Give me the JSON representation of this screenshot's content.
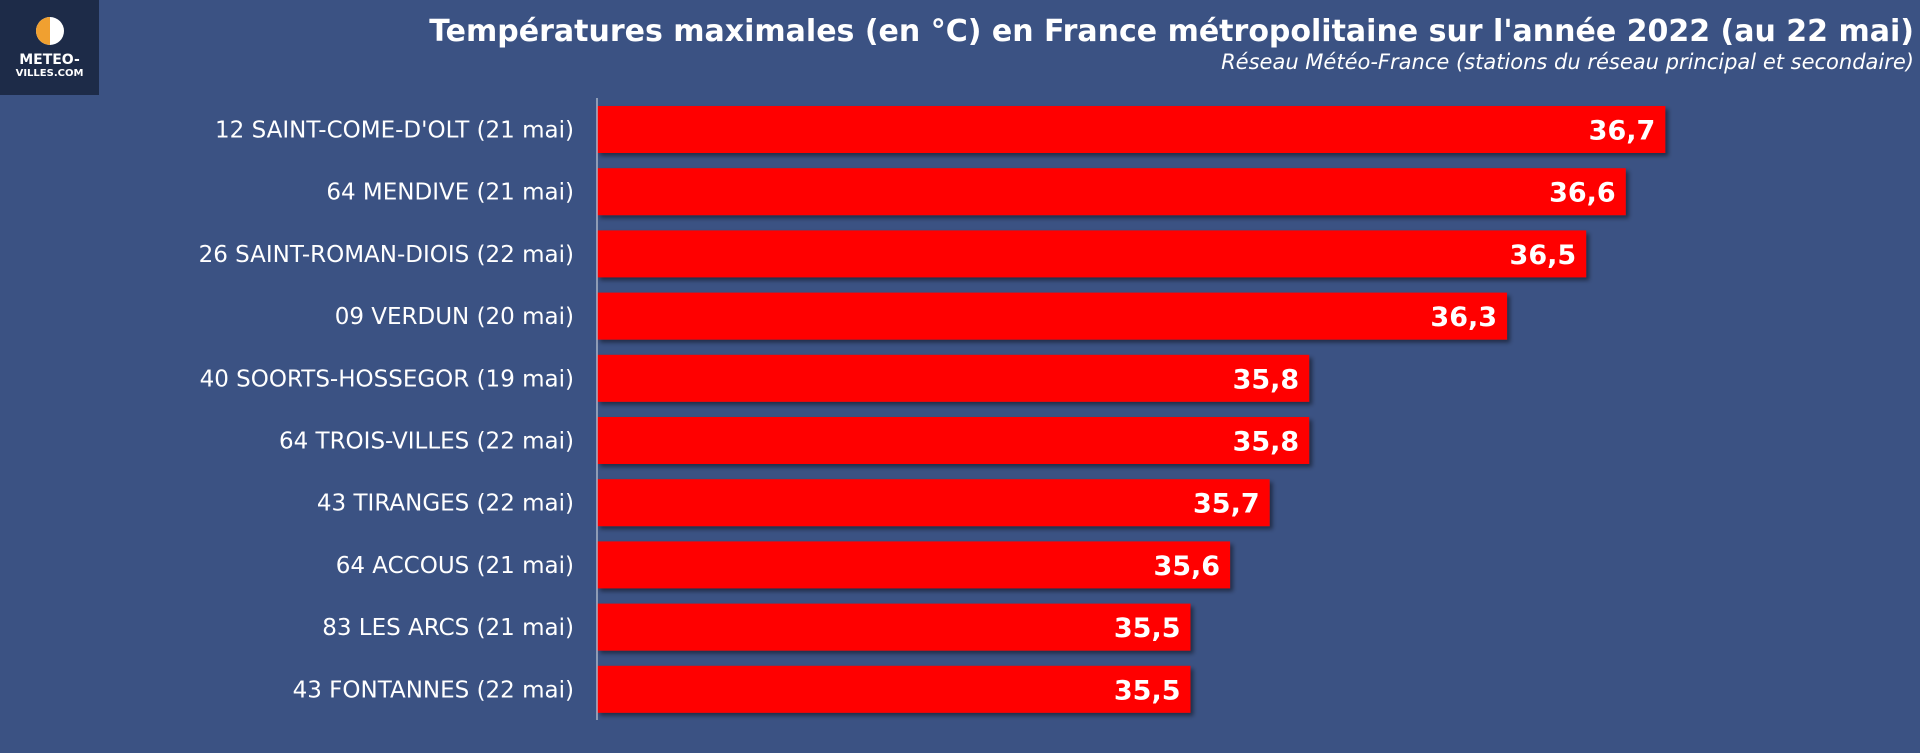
{
  "logo": {
    "line1": "METEO-",
    "line2": "VILLES.COM"
  },
  "colors": {
    "background": "#3b5283",
    "bar": "#ff0000",
    "logo_bg": "#1d2b48",
    "logo_accent": "#f0a030"
  },
  "chart_data": {
    "type": "bar",
    "orientation": "horizontal",
    "title": "Températures maximales (en °C) en France métropolitaine sur l'année 2022 (au 22 mai)",
    "subtitle": "Réseau Météo-France (stations du réseau principal et secondaire)",
    "categories": [
      "12 SAINT-COME-D'OLT (21 mai)",
      "64 MENDIVE (21 mai)",
      "26 SAINT-ROMAN-DIOIS (22 mai)",
      "09 VERDUN (20 mai)",
      "40 SOORTS-HOSSEGOR (19 mai)",
      "64 TROIS-VILLES (22 mai)",
      "43 TIRANGES (22 mai)",
      "64 ACCOUS (21 mai)",
      "83 LES ARCS (21 mai)",
      "43 FONTANNES (22 mai)"
    ],
    "values": [
      36.7,
      36.6,
      36.5,
      36.3,
      35.8,
      35.8,
      35.7,
      35.6,
      35.5,
      35.5
    ],
    "value_labels": [
      "36,7",
      "36,6",
      "36,5",
      "36,3",
      "35,8",
      "35,8",
      "35,7",
      "35,6",
      "35,5",
      "35,5"
    ],
    "xlim": [
      34.0,
      37.0
    ],
    "grid": false,
    "legend": "none"
  }
}
